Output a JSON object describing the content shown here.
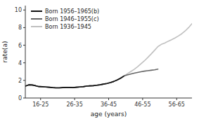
{
  "chart_data": {
    "type": "line",
    "xlabel": "age (years)",
    "ylabel": "rate(a)",
    "xlim": [
      16,
      65
    ],
    "xticks": [
      {
        "value": 20.5,
        "label": "16-25"
      },
      {
        "value": 30.5,
        "label": "26-35"
      },
      {
        "value": 40.5,
        "label": "36-45"
      },
      {
        "value": 50.5,
        "label": "46-55"
      },
      {
        "value": 60.5,
        "label": "56-65"
      }
    ],
    "ylim": [
      0,
      10.5
    ],
    "yticks": [
      0,
      2,
      4,
      6,
      8,
      10
    ],
    "grid": false,
    "legend": "upper left",
    "series": [
      {
        "name": "Born 1936–1945",
        "color": "#c0c0c0",
        "x": [
          16,
          17,
          18,
          19,
          20,
          21,
          22,
          23,
          24,
          25,
          26,
          27,
          28,
          29,
          30,
          31,
          32,
          33,
          34,
          35,
          36,
          37,
          38,
          39,
          40,
          41,
          42,
          43,
          44,
          45,
          46,
          47,
          48,
          49,
          50,
          51,
          52,
          53,
          54,
          55,
          56,
          57,
          58,
          59,
          60,
          61,
          62,
          63,
          64,
          65
        ],
        "values": [
          1.35,
          1.5,
          1.48,
          1.4,
          1.3,
          1.28,
          1.25,
          1.22,
          1.18,
          1.15,
          1.15,
          1.18,
          1.2,
          1.2,
          1.18,
          1.22,
          1.25,
          1.28,
          1.35,
          1.38,
          1.4,
          1.45,
          1.5,
          1.58,
          1.65,
          1.75,
          1.88,
          2.05,
          2.25,
          2.5,
          2.75,
          3.0,
          3.25,
          3.55,
          3.88,
          4.22,
          4.6,
          5.0,
          5.42,
          5.85,
          6.1,
          6.25,
          6.45,
          6.62,
          6.82,
          7.05,
          7.3,
          7.62,
          8.0,
          8.45
        ]
      },
      {
        "name": "Born 1946–1955(c)",
        "color": "#666666",
        "x": [
          16,
          17,
          18,
          19,
          20,
          21,
          22,
          23,
          24,
          25,
          26,
          27,
          28,
          29,
          30,
          31,
          32,
          33,
          34,
          35,
          36,
          37,
          38,
          39,
          40,
          41,
          42,
          43,
          44,
          45,
          46,
          47,
          48,
          49,
          50,
          51,
          52,
          53,
          54,
          55
        ],
        "values": [
          1.35,
          1.5,
          1.48,
          1.4,
          1.3,
          1.28,
          1.25,
          1.22,
          1.18,
          1.15,
          1.15,
          1.18,
          1.2,
          1.2,
          1.18,
          1.22,
          1.25,
          1.28,
          1.35,
          1.38,
          1.4,
          1.45,
          1.5,
          1.58,
          1.65,
          1.75,
          1.88,
          2.05,
          2.25,
          2.5,
          2.62,
          2.72,
          2.82,
          2.9,
          2.98,
          3.05,
          3.1,
          3.15,
          3.2,
          3.28
        ]
      },
      {
        "name": "Born 1956–1965(b)",
        "color": "#111111",
        "x": [
          16,
          17,
          18,
          19,
          20,
          21,
          22,
          23,
          24,
          25,
          26,
          27,
          28,
          29,
          30,
          31,
          32,
          33,
          34,
          35,
          36,
          37,
          38,
          39,
          40,
          41,
          42,
          43,
          44,
          45
        ],
        "values": [
          1.35,
          1.5,
          1.48,
          1.4,
          1.3,
          1.28,
          1.25,
          1.22,
          1.18,
          1.15,
          1.15,
          1.18,
          1.2,
          1.2,
          1.18,
          1.22,
          1.25,
          1.28,
          1.35,
          1.38,
          1.4,
          1.45,
          1.5,
          1.58,
          1.65,
          1.75,
          1.88,
          2.05,
          2.25,
          2.5
        ]
      }
    ]
  }
}
